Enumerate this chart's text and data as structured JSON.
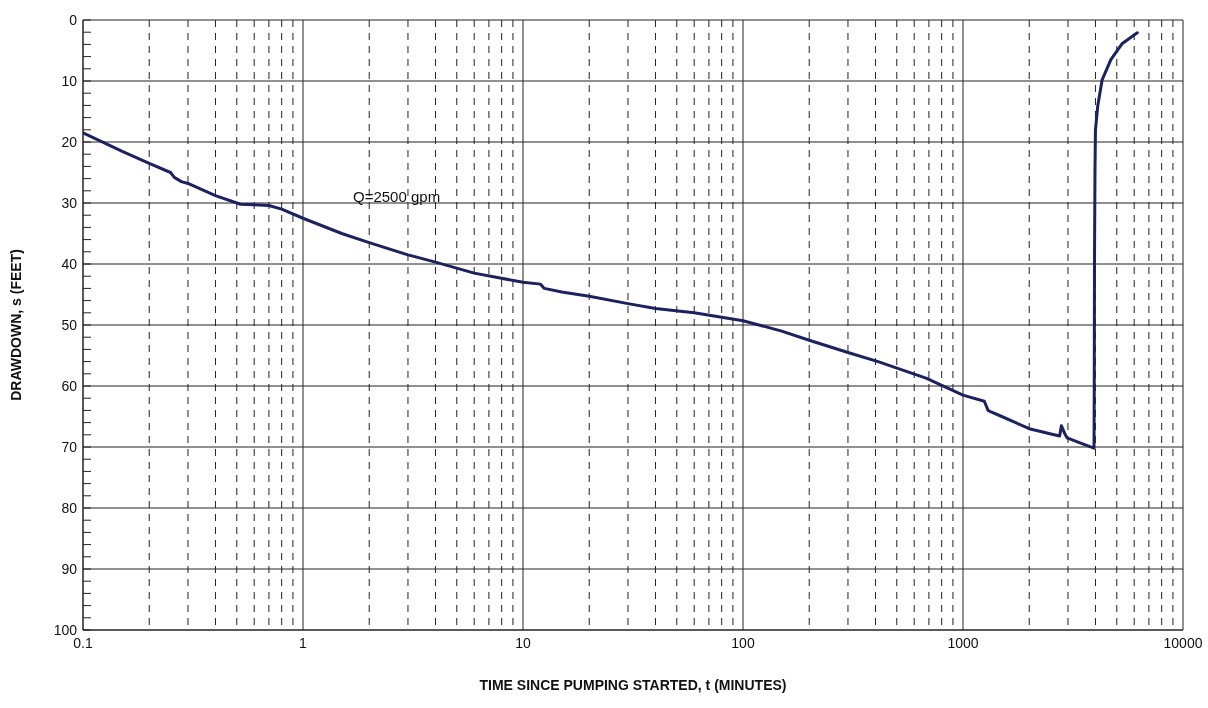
{
  "chart_data": {
    "type": "line",
    "xlabel": "TIME SINCE PUMPING STARTED, t (MINUTES)",
    "ylabel": "DRAWDOWN, s (FEET)",
    "annotations": [
      "Q=2500 gpm"
    ],
    "log": "x",
    "grid": true,
    "marker": "none",
    "line_style": "solid",
    "xlim": [
      0.1,
      10000
    ],
    "xticks": [
      0.1,
      {
        "value": 0.2,
        "label": null
      },
      {
        "value": 0.3,
        "label": null
      },
      {
        "value": 0.4,
        "label": null
      },
      {
        "value": 0.5,
        "label": null
      },
      {
        "value": 0.6,
        "label": null
      },
      {
        "value": 0.7,
        "label": null
      },
      {
        "value": 0.8,
        "label": null
      },
      {
        "value": 0.9,
        "label": null
      },
      1,
      {
        "value": 2,
        "label": null
      },
      {
        "value": 3,
        "label": null
      },
      {
        "value": 4,
        "label": null
      },
      {
        "value": 5,
        "label": null
      },
      {
        "value": 6,
        "label": null
      },
      {
        "value": 7,
        "label": null
      },
      {
        "value": 8,
        "label": null
      },
      {
        "value": 9,
        "label": null
      },
      10,
      {
        "value": 20,
        "label": null
      },
      {
        "value": 30,
        "label": null
      },
      {
        "value": 40,
        "label": null
      },
      {
        "value": 50,
        "label": null
      },
      {
        "value": 60,
        "label": null
      },
      {
        "value": 70,
        "label": null
      },
      {
        "value": 80,
        "label": null
      },
      {
        "value": 90,
        "label": null
      },
      100,
      {
        "value": 200,
        "label": null
      },
      {
        "value": 300,
        "label": null
      },
      {
        "value": 400,
        "label": null
      },
      {
        "value": 500,
        "label": null
      },
      {
        "value": 600,
        "label": null
      },
      {
        "value": 700,
        "label": null
      },
      {
        "value": 800,
        "label": null
      },
      {
        "value": 900,
        "label": null
      },
      1000,
      {
        "value": 2000,
        "label": null
      },
      {
        "value": 3000,
        "label": null
      },
      {
        "value": 4000,
        "label": null
      },
      {
        "value": 5000,
        "label": null
      },
      {
        "value": 6000,
        "label": null
      },
      {
        "value": 7000,
        "label": null
      },
      {
        "value": 8000,
        "label": null
      },
      {
        "value": 9000,
        "label": null
      },
      10000
    ],
    "ylim": [
      100,
      0
    ],
    "yticks": [
      0,
      {
        "value": 2,
        "label": null
      },
      {
        "value": 4,
        "label": null
      },
      {
        "value": 6,
        "label": null
      },
      {
        "value": 8,
        "label": null
      },
      10,
      {
        "value": 12,
        "label": null
      },
      {
        "value": 14,
        "label": null
      },
      {
        "value": 16,
        "label": null
      },
      {
        "value": 18,
        "label": null
      },
      20,
      {
        "value": 22,
        "label": null
      },
      {
        "value": 24,
        "label": null
      },
      {
        "value": 26,
        "label": null
      },
      {
        "value": 28,
        "label": null
      },
      30,
      {
        "value": 32,
        "label": null
      },
      {
        "value": 34,
        "label": null
      },
      {
        "value": 36,
        "label": null
      },
      {
        "value": 38,
        "label": null
      },
      40,
      {
        "value": 42,
        "label": null
      },
      {
        "value": 44,
        "label": null
      },
      {
        "value": 46,
        "label": null
      },
      {
        "value": 48,
        "label": null
      },
      50,
      {
        "value": 52,
        "label": null
      },
      {
        "value": 54,
        "label": null
      },
      {
        "value": 56,
        "label": null
      },
      {
        "value": 58,
        "label": null
      },
      60,
      {
        "value": 62,
        "label": null
      },
      {
        "value": 64,
        "label": null
      },
      {
        "value": 66,
        "label": null
      },
      {
        "value": 68,
        "label": null
      },
      70,
      {
        "value": 72,
        "label": null
      },
      {
        "value": 74,
        "label": null
      },
      {
        "value": 76,
        "label": null
      },
      {
        "value": 78,
        "label": null
      },
      80,
      {
        "value": 82,
        "label": null
      },
      {
        "value": 84,
        "label": null
      },
      {
        "value": 86,
        "label": null
      },
      {
        "value": 88,
        "label": null
      },
      90,
      {
        "value": 92,
        "label": null
      },
      {
        "value": 94,
        "label": null
      },
      {
        "value": 96,
        "label": null
      },
      {
        "value": 98,
        "label": null
      },
      100
    ],
    "series": [
      {
        "color": "#1c2160",
        "x": [
          0.1,
          0.15,
          0.2,
          0.25,
          0.26,
          0.28,
          0.3,
          0.4,
          0.52,
          0.6,
          0.7,
          0.8,
          1,
          1.5,
          2,
          3,
          4,
          6,
          10,
          12,
          12.5,
          15,
          20,
          30,
          40,
          60,
          100,
          150,
          200,
          300,
          411,
          679,
          1000,
          1250,
          1300,
          1350,
          1500,
          2000,
          2540,
          2750,
          2800,
          2900,
          2970,
          3500,
          3940,
          3950,
          3960,
          3980,
          4000,
          4100,
          4290,
          4700,
          5280,
          6200
        ],
        "values": [
          18.5,
          21.5,
          23.5,
          25,
          25.8,
          26.5,
          26.8,
          28.8,
          30.2,
          30.3,
          30.4,
          31,
          32.5,
          35,
          36.5,
          38.5,
          39.7,
          41.5,
          43,
          43.3,
          44,
          44.6,
          45.3,
          46.5,
          47.3,
          48,
          49.3,
          51,
          52.5,
          54.5,
          56,
          58.7,
          61.5,
          62.5,
          64,
          64.3,
          65,
          67,
          67.9,
          68.2,
          66.5,
          67.8,
          68.5,
          69.5,
          70.2,
          60,
          40,
          25,
          18,
          14,
          9.8,
          6.5,
          3.9,
          2.1
        ]
      }
    ]
  }
}
